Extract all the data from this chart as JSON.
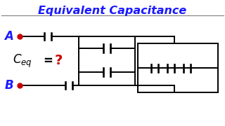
{
  "title": "Equivalent Capacitance",
  "title_color": "#1a1aff",
  "background_color": "#ffffff",
  "node_color": "#cc0000",
  "label_color": "#1a1aff",
  "ceq_color": "#000000",
  "question_color": "#cc0000",
  "line_color": "#000000"
}
